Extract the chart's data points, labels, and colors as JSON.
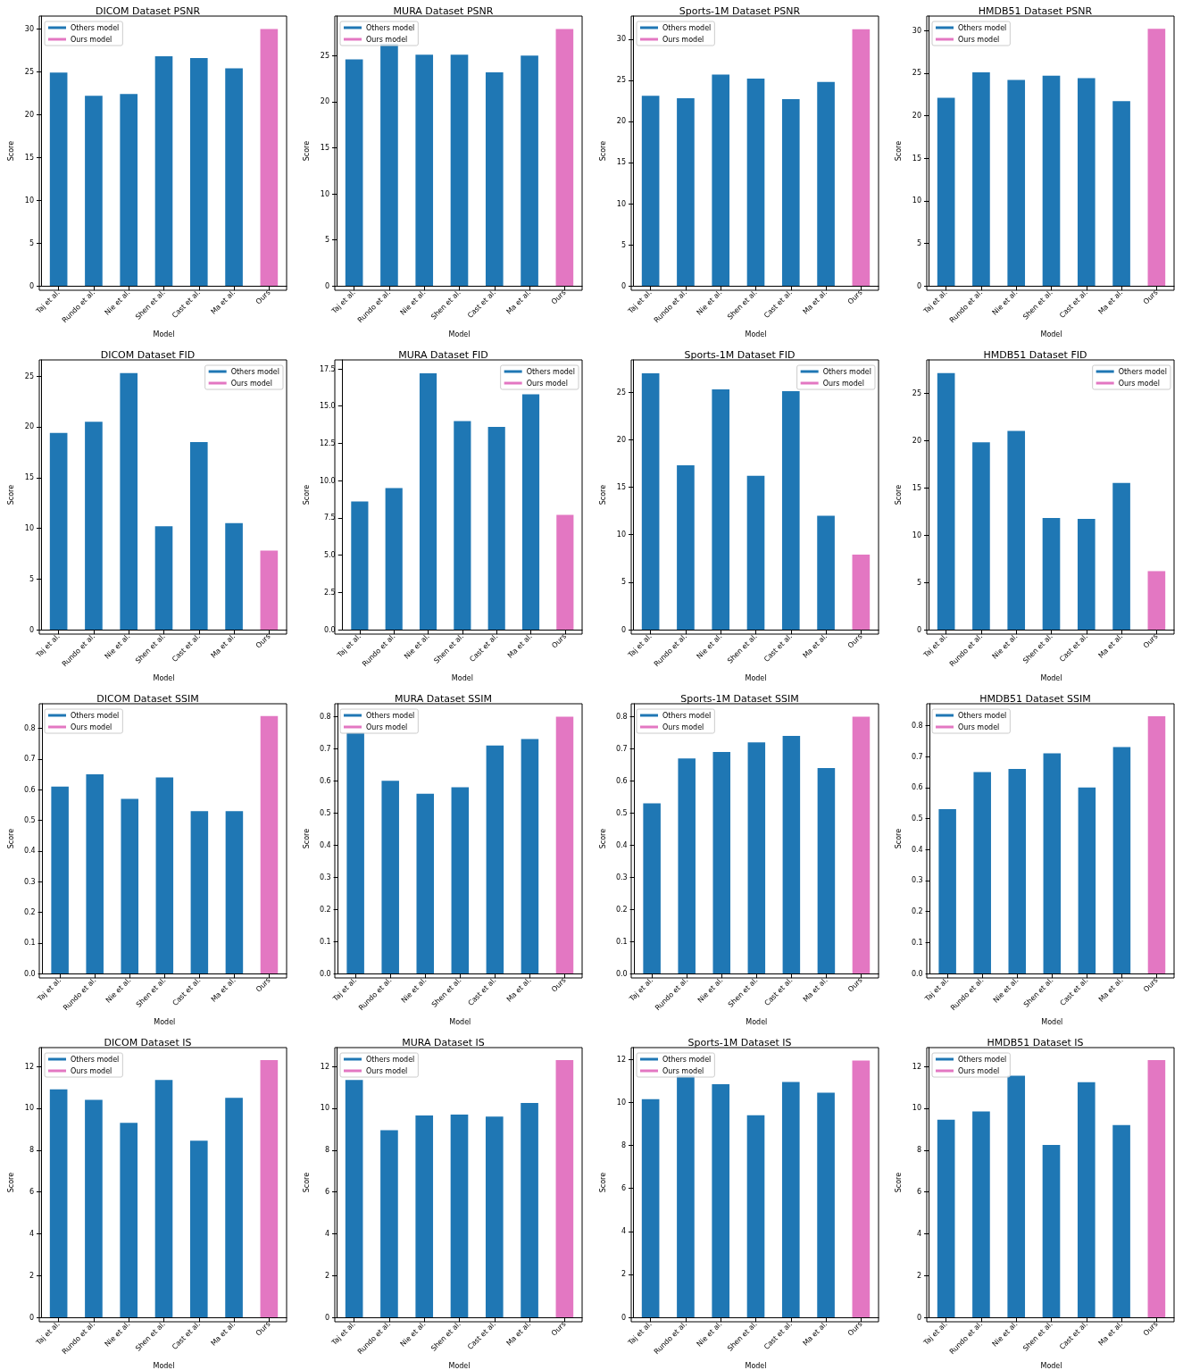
{
  "chart_data": [
    {
      "type": "bar",
      "title": "DICOM Dataset PSNR",
      "xlabel": "Model",
      "ylabel": "Score",
      "legend": "top left",
      "categories": [
        "Taj et al.",
        "Rundo et al.",
        "Nie et al.",
        "Shen et al.",
        "Cast et al.",
        "Ma et al.",
        "Ours"
      ],
      "ylim": [
        0,
        31.5
      ],
      "yticks": [
        0,
        5,
        10,
        15,
        20,
        25,
        30
      ],
      "series": [
        {
          "name": "Others model",
          "color": "#1f77b4",
          "values": [
            24.9,
            22.2,
            22.4,
            26.8,
            26.6,
            25.4,
            null
          ]
        },
        {
          "name": "Ours model",
          "color": "#e377c2",
          "values": [
            null,
            null,
            null,
            null,
            null,
            null,
            30.0
          ]
        }
      ]
    },
    {
      "type": "bar",
      "title": "MURA Dataset PSNR",
      "xlabel": "Model",
      "ylabel": "Score",
      "legend": "top left",
      "categories": [
        "Taj et al.",
        "Rundo et al.",
        "Nie et al.",
        "Shen et al.",
        "Cast et al.",
        "Ma et al.",
        "Ours"
      ],
      "ylim": [
        0,
        29.3
      ],
      "yticks": [
        0,
        5,
        10,
        15,
        20,
        25
      ],
      "series": [
        {
          "name": "Others model",
          "color": "#1f77b4",
          "values": [
            24.6,
            26.3,
            25.1,
            25.1,
            23.2,
            25.0,
            null
          ]
        },
        {
          "name": "Ours model",
          "color": "#e377c2",
          "values": [
            null,
            null,
            null,
            null,
            null,
            null,
            27.9
          ]
        }
      ]
    },
    {
      "type": "bar",
      "title": "Sports-1M Dataset PSNR",
      "xlabel": "Model",
      "ylabel": "Score",
      "legend": "top left",
      "categories": [
        "Taj et al.",
        "Rundo et al.",
        "Nie et al.",
        "Shen et al.",
        "Cast et al.",
        "Ma et al.",
        "Ours"
      ],
      "ylim": [
        0,
        32.8
      ],
      "yticks": [
        0,
        5,
        10,
        15,
        20,
        25,
        30
      ],
      "series": [
        {
          "name": "Others model",
          "color": "#1f77b4",
          "values": [
            23.1,
            22.8,
            25.7,
            25.2,
            22.7,
            24.8,
            null
          ]
        },
        {
          "name": "Ours model",
          "color": "#e377c2",
          "values": [
            null,
            null,
            null,
            null,
            null,
            null,
            31.2
          ]
        }
      ]
    },
    {
      "type": "bar",
      "title": "HMDB51 Dataset PSNR",
      "xlabel": "Model",
      "ylabel": "Score",
      "legend": "top left",
      "categories": [
        "Taj et al.",
        "Rundo et al.",
        "Nie et al.",
        "Shen et al.",
        "Cast et al.",
        "Ma et al.",
        "Ours"
      ],
      "ylim": [
        0,
        31.7
      ],
      "yticks": [
        0,
        5,
        10,
        15,
        20,
        25,
        30
      ],
      "series": [
        {
          "name": "Others model",
          "color": "#1f77b4",
          "values": [
            22.1,
            25.1,
            24.2,
            24.7,
            24.4,
            21.7,
            null
          ]
        },
        {
          "name": "Ours model",
          "color": "#e377c2",
          "values": [
            null,
            null,
            null,
            null,
            null,
            null,
            30.2
          ]
        }
      ]
    },
    {
      "type": "bar",
      "title": "DICOM Dataset FID",
      "xlabel": "Model",
      "ylabel": "Score",
      "legend": "top right",
      "categories": [
        "Taj et al.",
        "Rundo et al.",
        "Nie et al.",
        "Shen et al.",
        "Cast et al.",
        "Ma et al.",
        "Ours"
      ],
      "ylim": [
        0,
        26.6
      ],
      "yticks": [
        0,
        5,
        10,
        15,
        20,
        25
      ],
      "series": [
        {
          "name": "Others model",
          "color": "#1f77b4",
          "values": [
            19.4,
            20.5,
            25.3,
            10.2,
            18.5,
            10.5,
            null
          ]
        },
        {
          "name": "Ours model",
          "color": "#e377c2",
          "values": [
            null,
            null,
            null,
            null,
            null,
            null,
            7.8
          ]
        }
      ]
    },
    {
      "type": "bar",
      "title": "MURA Dataset FID",
      "xlabel": "Model",
      "ylabel": "Score",
      "legend": "top right",
      "categories": [
        "Taj et al.",
        "Rundo et al.",
        "Nie et al.",
        "Shen et al.",
        "Cast et al.",
        "Ma et al.",
        "Ours"
      ],
      "ylim": [
        0,
        18.1
      ],
      "yticks": [
        {
          "value": 0,
          "label": "0.0"
        },
        2.5,
        {
          "value": 5,
          "label": "5.0"
        },
        7.5,
        {
          "value": 10,
          "label": "10.0"
        },
        12.5,
        {
          "value": 15,
          "label": "15.0"
        },
        17.5
      ],
      "series": [
        {
          "name": "Others model",
          "color": "#1f77b4",
          "values": [
            8.6,
            9.5,
            17.2,
            14.0,
            13.6,
            15.8,
            null
          ]
        },
        {
          "name": "Ours model",
          "color": "#e377c2",
          "values": [
            null,
            null,
            null,
            null,
            null,
            null,
            7.7
          ]
        }
      ]
    },
    {
      "type": "bar",
      "title": "Sports-1M Dataset FID",
      "xlabel": "Model",
      "ylabel": "Score",
      "legend": "top right",
      "categories": [
        "Taj et al.",
        "Rundo et al.",
        "Nie et al.",
        "Shen et al.",
        "Cast et al.",
        "Ma et al.",
        "Ours"
      ],
      "ylim": [
        0,
        28.4
      ],
      "yticks": [
        0,
        5,
        10,
        15,
        20,
        25
      ],
      "series": [
        {
          "name": "Others model",
          "color": "#1f77b4",
          "values": [
            27.0,
            17.3,
            25.3,
            16.2,
            25.1,
            12.0,
            null
          ]
        },
        {
          "name": "Ours model",
          "color": "#e377c2",
          "values": [
            null,
            null,
            null,
            null,
            null,
            null,
            7.9
          ]
        }
      ]
    },
    {
      "type": "bar",
      "title": "HMDB51 Dataset FID",
      "xlabel": "Model",
      "ylabel": "Score",
      "legend": "top right",
      "categories": [
        "Taj et al.",
        "Rundo et al.",
        "Nie et al.",
        "Shen et al.",
        "Cast et al.",
        "Ma et al.",
        "Ours"
      ],
      "ylim": [
        0,
        28.5
      ],
      "yticks": [
        0,
        5,
        10,
        15,
        20,
        25
      ],
      "series": [
        {
          "name": "Others model",
          "color": "#1f77b4",
          "values": [
            27.1,
            19.8,
            21.0,
            11.8,
            11.7,
            15.5,
            null
          ]
        },
        {
          "name": "Ours model",
          "color": "#e377c2",
          "values": [
            null,
            null,
            null,
            null,
            null,
            null,
            6.2
          ]
        }
      ]
    },
    {
      "type": "bar",
      "title": "DICOM Dataset SSIM",
      "xlabel": "Model",
      "ylabel": "Score",
      "legend": "top left",
      "categories": [
        "Taj et al.",
        "Rundo et al.",
        "Nie et al.",
        "Shen et al.",
        "Cast et al.",
        "Ma et al.",
        "Ours"
      ],
      "ylim": [
        0,
        0.88
      ],
      "yticks": [
        {
          "value": 0,
          "label": "0.0"
        },
        0.1,
        0.2,
        0.3,
        0.4,
        0.5,
        0.6,
        0.7,
        0.8
      ],
      "series": [
        {
          "name": "Others model",
          "color": "#1f77b4",
          "values": [
            0.61,
            0.65,
            0.57,
            0.64,
            0.53,
            0.53,
            null
          ]
        },
        {
          "name": "Ours model",
          "color": "#e377c2",
          "values": [
            null,
            null,
            null,
            null,
            null,
            null,
            0.84
          ]
        }
      ]
    },
    {
      "type": "bar",
      "title": "MURA Dataset SSIM",
      "xlabel": "Model",
      "ylabel": "Score",
      "legend": "top left",
      "categories": [
        "Taj et al.",
        "Rundo et al.",
        "Nie et al.",
        "Shen et al.",
        "Cast et al.",
        "Ma et al.",
        "Ours"
      ],
      "ylim": [
        0,
        0.84
      ],
      "yticks": [
        {
          "value": 0,
          "label": "0.0"
        },
        0.1,
        0.2,
        0.3,
        0.4,
        0.5,
        0.6,
        0.7,
        0.8
      ],
      "series": [
        {
          "name": "Others model",
          "color": "#1f77b4",
          "values": [
            0.75,
            0.6,
            0.56,
            0.58,
            0.71,
            0.73,
            null
          ]
        },
        {
          "name": "Ours model",
          "color": "#e377c2",
          "values": [
            null,
            null,
            null,
            null,
            null,
            null,
            0.8
          ]
        }
      ]
    },
    {
      "type": "bar",
      "title": "Sports-1M Dataset SSIM",
      "xlabel": "Model",
      "ylabel": "Score",
      "legend": "top left",
      "categories": [
        "Taj et al.",
        "Rundo et al.",
        "Nie et al.",
        "Shen et al.",
        "Cast et al.",
        "Ma et al.",
        "Ours"
      ],
      "ylim": [
        0,
        0.84
      ],
      "yticks": [
        {
          "value": 0,
          "label": "0.0"
        },
        0.1,
        0.2,
        0.3,
        0.4,
        0.5,
        0.6,
        0.7,
        0.8
      ],
      "series": [
        {
          "name": "Others model",
          "color": "#1f77b4",
          "values": [
            0.53,
            0.67,
            0.69,
            0.72,
            0.74,
            0.64,
            null
          ]
        },
        {
          "name": "Ours model",
          "color": "#e377c2",
          "values": [
            null,
            null,
            null,
            null,
            null,
            null,
            0.8
          ]
        }
      ]
    },
    {
      "type": "bar",
      "title": "HMDB51 Dataset SSIM",
      "xlabel": "Model",
      "ylabel": "Score",
      "legend": "top left",
      "categories": [
        "Taj et al.",
        "Rundo et al.",
        "Nie et al.",
        "Shen et al.",
        "Cast et al.",
        "Ma et al.",
        "Ours"
      ],
      "ylim": [
        0,
        0.87
      ],
      "yticks": [
        {
          "value": 0,
          "label": "0.0"
        },
        0.1,
        0.2,
        0.3,
        0.4,
        0.5,
        0.6,
        0.7,
        0.8
      ],
      "series": [
        {
          "name": "Others model",
          "color": "#1f77b4",
          "values": [
            0.53,
            0.65,
            0.66,
            0.71,
            0.6,
            0.73,
            null
          ]
        },
        {
          "name": "Ours model",
          "color": "#e377c2",
          "values": [
            null,
            null,
            null,
            null,
            null,
            null,
            0.83
          ]
        }
      ]
    },
    {
      "type": "bar",
      "title": "DICOM Dataset IS",
      "xlabel": "Model",
      "ylabel": "Score",
      "legend": "top left",
      "categories": [
        "Taj et al.",
        "Rundo et al.",
        "Nie et al.",
        "Shen et al.",
        "Cast et al.",
        "Ma et al.",
        "Ours"
      ],
      "ylim": [
        0,
        12.9
      ],
      "yticks": [
        0,
        2,
        4,
        6,
        8,
        10,
        12
      ],
      "series": [
        {
          "name": "Others model",
          "color": "#1f77b4",
          "values": [
            10.9,
            10.4,
            9.3,
            11.35,
            8.45,
            10.5,
            null
          ]
        },
        {
          "name": "Ours model",
          "color": "#e377c2",
          "values": [
            null,
            null,
            null,
            null,
            null,
            null,
            12.3
          ]
        }
      ]
    },
    {
      "type": "bar",
      "title": "MURA Dataset IS",
      "xlabel": "Model",
      "ylabel": "Score",
      "legend": "top left",
      "categories": [
        "Taj et al.",
        "Rundo et al.",
        "Nie et al.",
        "Shen et al.",
        "Cast et al.",
        "Ma et al.",
        "Ours"
      ],
      "ylim": [
        0,
        12.9
      ],
      "yticks": [
        0,
        2,
        4,
        6,
        8,
        10,
        12
      ],
      "series": [
        {
          "name": "Others model",
          "color": "#1f77b4",
          "values": [
            11.35,
            8.95,
            9.65,
            9.7,
            9.6,
            10.25,
            null
          ]
        },
        {
          "name": "Ours model",
          "color": "#e377c2",
          "values": [
            null,
            null,
            null,
            null,
            null,
            null,
            12.3
          ]
        }
      ]
    },
    {
      "type": "bar",
      "title": "Sports-1M Dataset IS",
      "xlabel": "Model",
      "ylabel": "Score",
      "legend": "top left",
      "categories": [
        "Taj et al.",
        "Rundo et al.",
        "Nie et al.",
        "Shen et al.",
        "Cast et al.",
        "Ma et al.",
        "Ours"
      ],
      "ylim": [
        0,
        12.55
      ],
      "yticks": [
        0,
        2,
        4,
        6,
        8,
        10,
        12
      ],
      "series": [
        {
          "name": "Others model",
          "color": "#1f77b4",
          "values": [
            10.15,
            11.25,
            10.85,
            9.4,
            10.95,
            10.45,
            null
          ]
        },
        {
          "name": "Ours model",
          "color": "#e377c2",
          "values": [
            null,
            null,
            null,
            null,
            null,
            null,
            11.95
          ]
        }
      ]
    },
    {
      "type": "bar",
      "title": "HMDB51 Dataset IS",
      "xlabel": "Model",
      "ylabel": "Score",
      "legend": "top left",
      "categories": [
        "Taj et al.",
        "Rundo et al.",
        "Nie et al.",
        "Shen et al.",
        "Cast et al.",
        "Ma et al.",
        "Ours"
      ],
      "ylim": [
        0,
        12.9
      ],
      "yticks": [
        0,
        2,
        4,
        6,
        8,
        10,
        12
      ],
      "series": [
        {
          "name": "Others model",
          "color": "#1f77b4",
          "values": [
            9.45,
            9.85,
            11.55,
            8.25,
            11.25,
            9.2,
            null
          ]
        },
        {
          "name": "Ours model",
          "color": "#e377c2",
          "values": [
            null,
            null,
            null,
            null,
            null,
            null,
            12.3
          ]
        }
      ]
    }
  ]
}
